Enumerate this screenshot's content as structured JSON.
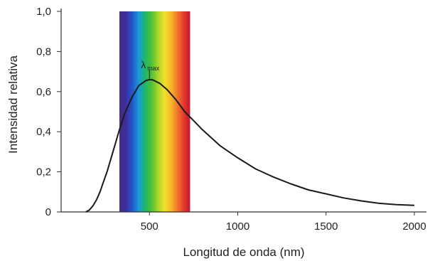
{
  "chart_data": {
    "type": "line",
    "title": "",
    "xlabel": "Longitud de onda (nm)",
    "ylabel": "Intensidad relativa",
    "xlim": [
      0,
      2000
    ],
    "ylim": [
      0,
      1.0
    ],
    "grid": false,
    "x_ticks": [
      500,
      1000,
      1500,
      2000
    ],
    "x_tick_labels": [
      "500",
      "1000",
      "1500",
      "2000"
    ],
    "y_ticks": [
      0,
      0.2,
      0.4,
      0.6,
      0.8,
      1.0
    ],
    "y_tick_labels": [
      "0",
      "0,2",
      "0,4",
      "0,6",
      "0,8",
      "1,0"
    ],
    "visible_band": {
      "start": 330,
      "end": 730
    },
    "band_colors": [
      "#4b2a7a",
      "#3a2fa0",
      "#2456c8",
      "#1a9ad6",
      "#1fb56a",
      "#4ec233",
      "#a6d42a",
      "#f0e12b",
      "#f7b92a",
      "#f0792a",
      "#e23b2c",
      "#c8102e"
    ],
    "annotation": {
      "text": "λ",
      "subscript": "max",
      "x": 500,
      "y": 0.66
    },
    "series": [
      {
        "color": "#1a1a1a",
        "x": [
          140,
          160,
          180,
          200,
          220,
          240,
          260,
          280,
          300,
          330,
          360,
          400,
          440,
          480,
          500,
          520,
          560,
          600,
          650,
          700,
          750,
          800,
          900,
          1000,
          1100,
          1200,
          1300,
          1400,
          1500,
          1600,
          1700,
          1800,
          1900,
          2000
        ],
        "y": [
          0.0,
          0.01,
          0.03,
          0.06,
          0.1,
          0.15,
          0.2,
          0.26,
          0.32,
          0.41,
          0.49,
          0.57,
          0.63,
          0.655,
          0.66,
          0.658,
          0.64,
          0.61,
          0.56,
          0.5,
          0.455,
          0.41,
          0.33,
          0.27,
          0.215,
          0.175,
          0.14,
          0.11,
          0.09,
          0.07,
          0.055,
          0.043,
          0.036,
          0.033
        ]
      }
    ]
  }
}
